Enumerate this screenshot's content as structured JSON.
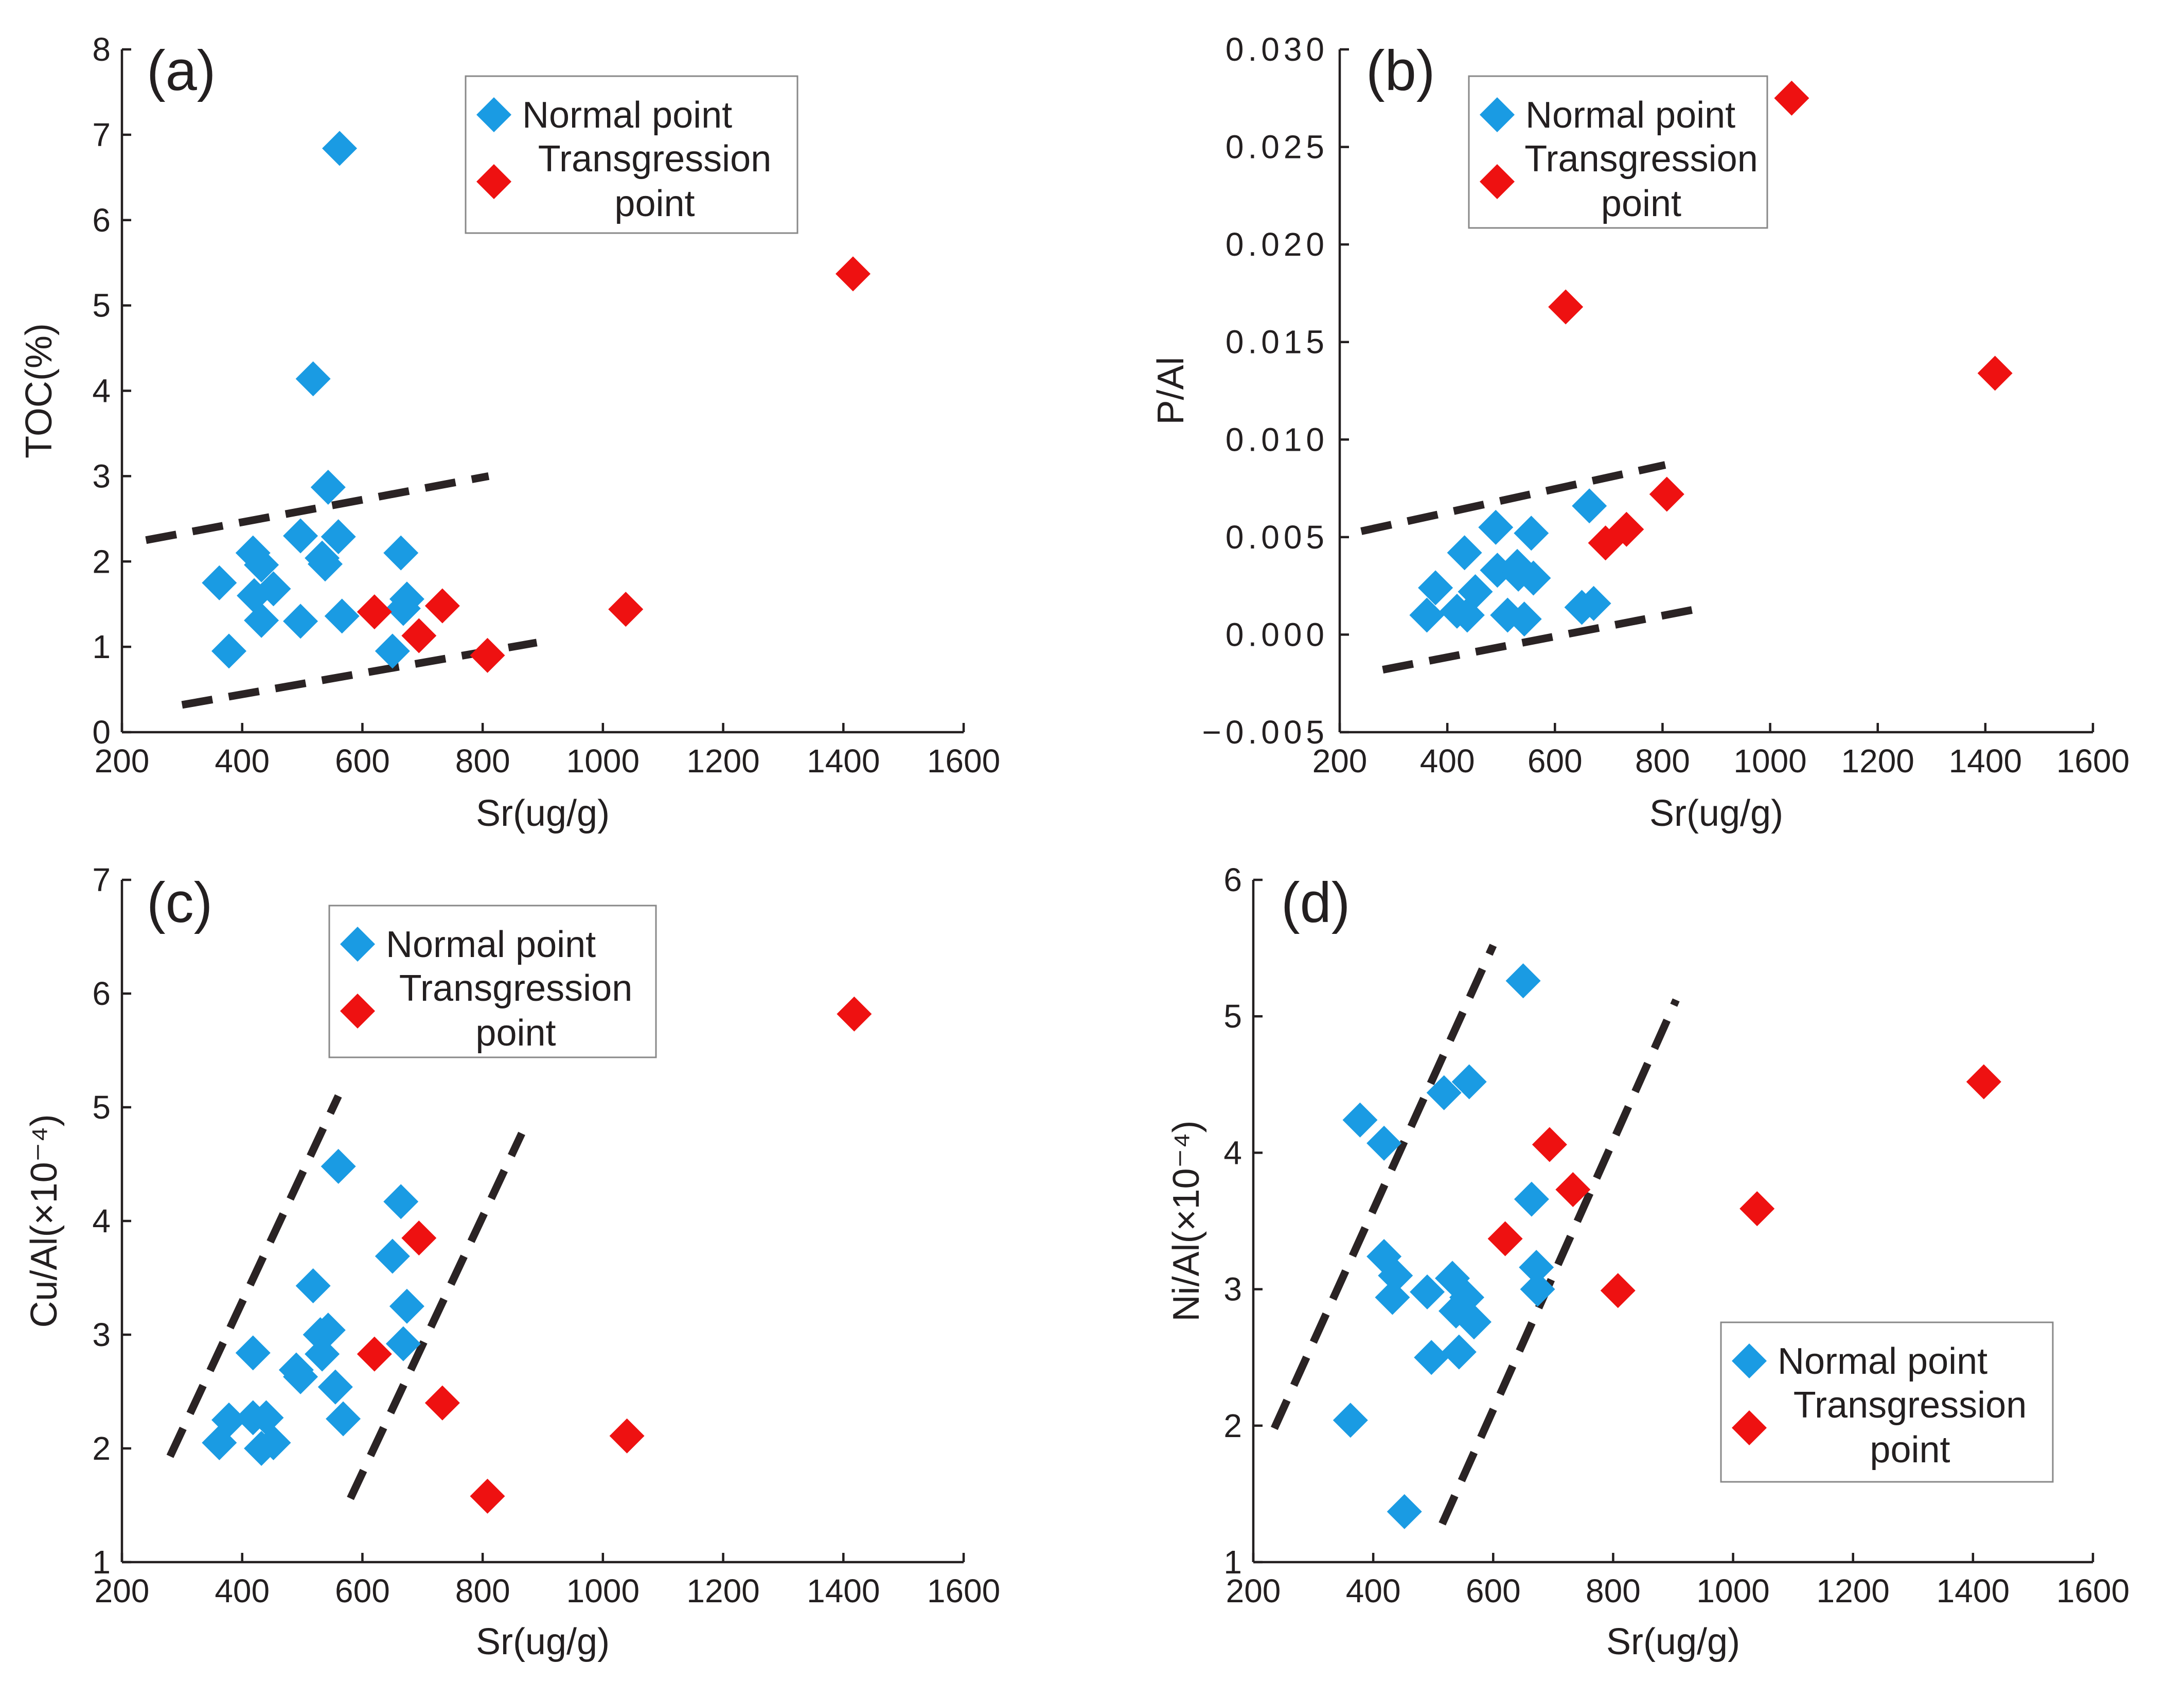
{
  "colors": {
    "normal": "#1a9be3",
    "transgression": "#ee1111",
    "axis": "#231f20",
    "trend": "#2a2324"
  },
  "marker_shape": "diamond",
  "chart_data": [
    {
      "type": "scatter",
      "panel": "(a)",
      "xlabel": "Sr(ug/g)",
      "ylabel": "TOC(%)",
      "xlim": [
        200,
        1600
      ],
      "ylim": [
        0,
        8
      ],
      "x_ticks": [
        200,
        400,
        600,
        800,
        1000,
        1200,
        1400,
        1600
      ],
      "y_ticks": [
        0,
        1,
        2,
        3,
        4,
        5,
        6,
        7,
        8
      ],
      "x_tick_labels": [
        "200",
        "400",
        "600",
        "800",
        "1000",
        "1200",
        "1400",
        "1600"
      ],
      "y_tick_labels": [
        "0",
        "1",
        "2",
        "3",
        "4",
        "5",
        "6",
        "7",
        "8"
      ],
      "legend": {
        "position": "top-center",
        "entries": [
          "Normal point",
          "Transgression\npoint"
        ]
      },
      "series": [
        {
          "name": "Normal point",
          "color": "#1a9be3",
          "points": [
            [
              562,
              6.84
            ],
            [
              518,
              4.14
            ],
            [
              543,
              2.87
            ],
            [
              362,
              1.75
            ],
            [
              378,
              0.95
            ],
            [
              418,
              2.1
            ],
            [
              432,
              1.96
            ],
            [
              452,
              1.68
            ],
            [
              420,
              1.6
            ],
            [
              432,
              1.31
            ],
            [
              497,
              2.3
            ],
            [
              497,
              1.3
            ],
            [
              533,
              2.04
            ],
            [
              538,
              1.97
            ],
            [
              560,
              2.29
            ],
            [
              566,
              1.36
            ],
            [
              664,
              2.1
            ],
            [
              668,
              1.45
            ],
            [
              674,
              1.56
            ],
            [
              650,
              0.95
            ]
          ]
        },
        {
          "name": "Transgression point",
          "color": "#ee1111",
          "points": [
            [
              1416,
              5.37
            ],
            [
              620,
              1.41
            ],
            [
              694,
              1.13
            ],
            [
              733,
              1.48
            ],
            [
              808,
              0.9
            ],
            [
              1038,
              1.44
            ]
          ]
        }
      ],
      "trend_lines": [
        [
          [
            240,
            2.25
          ],
          [
            810,
            3.0
          ]
        ],
        [
          [
            300,
            0.32
          ],
          [
            890,
            1.05
          ]
        ]
      ]
    },
    {
      "type": "scatter",
      "panel": "(b)",
      "xlabel": "Sr(ug/g)",
      "ylabel": "P/Al",
      "xlim": [
        200,
        1600
      ],
      "ylim": [
        -0.005,
        0.03
      ],
      "x_ticks": [
        200,
        400,
        600,
        800,
        1000,
        1200,
        1400,
        1600
      ],
      "y_ticks": [
        -0.005,
        0.0,
        0.005,
        0.01,
        0.015,
        0.02,
        0.025,
        0.03
      ],
      "x_tick_labels": [
        "200",
        "400",
        "600",
        "800",
        "1000",
        "1200",
        "1400",
        "1600"
      ],
      "y_tick_labels": [
        "−0.005",
        "0.000",
        "0.005",
        "0.010",
        "0.015",
        "0.020",
        "0.025",
        "0.030"
      ],
      "legend": {
        "position": "top-center",
        "entries": [
          "Normal point",
          "Transgression\npoint"
        ]
      },
      "series": [
        {
          "name": "Normal point",
          "color": "#1a9be3",
          "points": [
            [
              362,
              0.001
            ],
            [
              378,
              0.0024
            ],
            [
              418,
              0.0012
            ],
            [
              432,
              0.0042
            ],
            [
              437,
              0.001
            ],
            [
              452,
              0.0022
            ],
            [
              490,
              0.0055
            ],
            [
              493,
              0.0033
            ],
            [
              512,
              0.001
            ],
            [
              530,
              0.0035
            ],
            [
              532,
              0.0031
            ],
            [
              543,
              0.0008
            ],
            [
              556,
              0.0052
            ],
            [
              560,
              0.0029
            ],
            [
              650,
              0.0014
            ],
            [
              664,
              0.0066
            ],
            [
              672,
              0.0016
            ]
          ]
        },
        {
          "name": "Transgression point",
          "color": "#ee1111",
          "points": [
            [
              1040,
              0.0275
            ],
            [
              620,
              0.0168
            ],
            [
              1418,
              0.0134
            ],
            [
              808,
              0.0072
            ],
            [
              733,
              0.0054
            ],
            [
              694,
              0.0047
            ]
          ]
        }
      ],
      "trend_lines": [
        [
          [
            240,
            0.0053
          ],
          [
            805,
            0.0087
          ]
        ],
        [
          [
            280,
            -0.0018
          ],
          [
            880,
            0.0014
          ]
        ]
      ]
    },
    {
      "type": "scatter",
      "panel": "(c)",
      "xlabel": "Sr(ug/g)",
      "ylabel": "Cu/Al(×10⁻⁴)",
      "xlim": [
        200,
        1600
      ],
      "ylim": [
        1,
        7
      ],
      "x_ticks": [
        200,
        400,
        600,
        800,
        1000,
        1200,
        1400,
        1600
      ],
      "y_ticks": [
        1,
        2,
        3,
        4,
        5,
        6,
        7
      ],
      "x_tick_labels": [
        "200",
        "400",
        "600",
        "800",
        "1000",
        "1200",
        "1400",
        "1600"
      ],
      "y_tick_labels": [
        "1",
        "2",
        "3",
        "4",
        "5",
        "6",
        "7"
      ],
      "legend": {
        "position": "top-center",
        "entries": [
          "Normal point",
          "Transgression\npoint"
        ]
      },
      "series": [
        {
          "name": "Normal point",
          "color": "#1a9be3",
          "points": [
            [
              362,
              2.05
            ],
            [
              378,
              2.25
            ],
            [
              418,
              2.84
            ],
            [
              418,
              2.27
            ],
            [
              432,
              2.0
            ],
            [
              440,
              2.27
            ],
            [
              452,
              2.05
            ],
            [
              490,
              2.69
            ],
            [
              497,
              2.63
            ],
            [
              518,
              3.43
            ],
            [
              530,
              3.0
            ],
            [
              533,
              2.83
            ],
            [
              543,
              3.04
            ],
            [
              555,
              2.54
            ],
            [
              560,
              4.48
            ],
            [
              568,
              2.26
            ],
            [
              650,
              3.69
            ],
            [
              664,
              4.17
            ],
            [
              668,
              2.92
            ],
            [
              674,
              3.25
            ]
          ]
        },
        {
          "name": "Transgression point",
          "color": "#ee1111",
          "points": [
            [
              1418,
              5.82
            ],
            [
              694,
              3.85
            ],
            [
              620,
              2.83
            ],
            [
              733,
              2.4
            ],
            [
              1040,
              2.11
            ],
            [
              808,
              1.58
            ]
          ]
        }
      ],
      "trend_lines": [
        [
          [
            280,
            1.93
          ],
          [
            560,
            5.1
          ]
        ],
        [
          [
            580,
            1.56
          ],
          [
            865,
            4.77
          ]
        ]
      ]
    },
    {
      "type": "scatter",
      "panel": "(d)",
      "xlabel": "Sr(ug/g)",
      "ylabel": "Ni/Al(×10⁻⁴)",
      "xlim": [
        200,
        1600
      ],
      "ylim": [
        1,
        6
      ],
      "x_ticks": [
        200,
        400,
        600,
        800,
        1000,
        1200,
        1400,
        1600
      ],
      "y_ticks": [
        1,
        2,
        3,
        4,
        5,
        6
      ],
      "x_tick_labels": [
        "200",
        "400",
        "600",
        "800",
        "1000",
        "1200",
        "1400",
        "1600"
      ],
      "y_tick_labels": [
        "1",
        "2",
        "3",
        "4",
        "5",
        "6"
      ],
      "legend": {
        "position": "bottom-right",
        "entries": [
          "Normal point",
          "Transgression\npoint"
        ]
      },
      "series": [
        {
          "name": "Normal point",
          "color": "#1a9be3",
          "points": [
            [
              650,
              5.26
            ],
            [
              362,
              2.04
            ],
            [
              378,
              4.24
            ],
            [
              418,
              4.07
            ],
            [
              418,
              3.24
            ],
            [
              432,
              2.94
            ],
            [
              437,
              3.1
            ],
            [
              452,
              1.37
            ],
            [
              490,
              2.98
            ],
            [
              497,
              2.5
            ],
            [
              518,
              4.44
            ],
            [
              532,
              3.08
            ],
            [
              538,
              2.84
            ],
            [
              543,
              2.54
            ],
            [
              556,
              2.94
            ],
            [
              560,
              4.52
            ],
            [
              568,
              2.76
            ],
            [
              664,
              3.66
            ],
            [
              672,
              3.16
            ],
            [
              674,
              3.0
            ]
          ]
        },
        {
          "name": "Transgression point",
          "color": "#ee1111",
          "points": [
            [
              1418,
              4.52
            ],
            [
              694,
              4.06
            ],
            [
              733,
              3.73
            ],
            [
              620,
              3.37
            ],
            [
              1040,
              3.59
            ],
            [
              808,
              2.99
            ]
          ]
        }
      ],
      "trend_lines": [
        [
          [
            235,
            1.98
          ],
          [
            600,
            5.52
          ]
        ],
        [
          [
            515,
            1.28
          ],
          [
            905,
            5.12
          ]
        ]
      ]
    }
  ]
}
